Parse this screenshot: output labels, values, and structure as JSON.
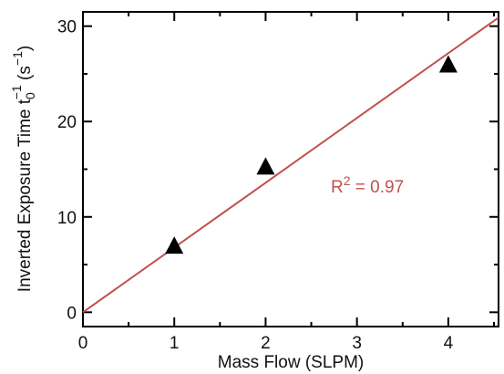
{
  "chart_data": {
    "type": "scatter",
    "xlabel": "Mass Flow (SLPM)",
    "ylabel": {
      "main": "Inverted Exposure Time t",
      "sub": "0",
      "sup": "−1",
      "unit_open": " (s",
      "unit_sup": "−1",
      "unit_close": ")"
    },
    "xlim": [
      0,
      4.55
    ],
    "ylim": [
      -1.5,
      31.5
    ],
    "x_ticks": [
      0,
      1,
      2,
      3,
      4
    ],
    "x_tick_labels": [
      "0",
      "1",
      "2",
      "3",
      "4"
    ],
    "x_minor_ticks": [
      0.5,
      1.5,
      2.5,
      3.5,
      4.5
    ],
    "y_ticks": [
      0,
      10,
      20,
      30
    ],
    "y_tick_labels": [
      "0",
      "10",
      "20",
      "30"
    ],
    "y_minor_ticks": [
      5,
      15,
      25
    ],
    "grid": false,
    "series": [
      {
        "marker": "filled-triangle",
        "color": "#000000",
        "x": [
          1,
          2,
          4
        ],
        "y": [
          7.0,
          15.3,
          26.0
        ]
      }
    ],
    "fit_line": {
      "color": "#c0504d",
      "x": [
        0,
        4.55
      ],
      "y": [
        0,
        30.9
      ]
    },
    "annotation": {
      "text_base": "R",
      "text_sup": "2",
      "text_rest": " = 0.97",
      "color": "#c0504d"
    }
  }
}
